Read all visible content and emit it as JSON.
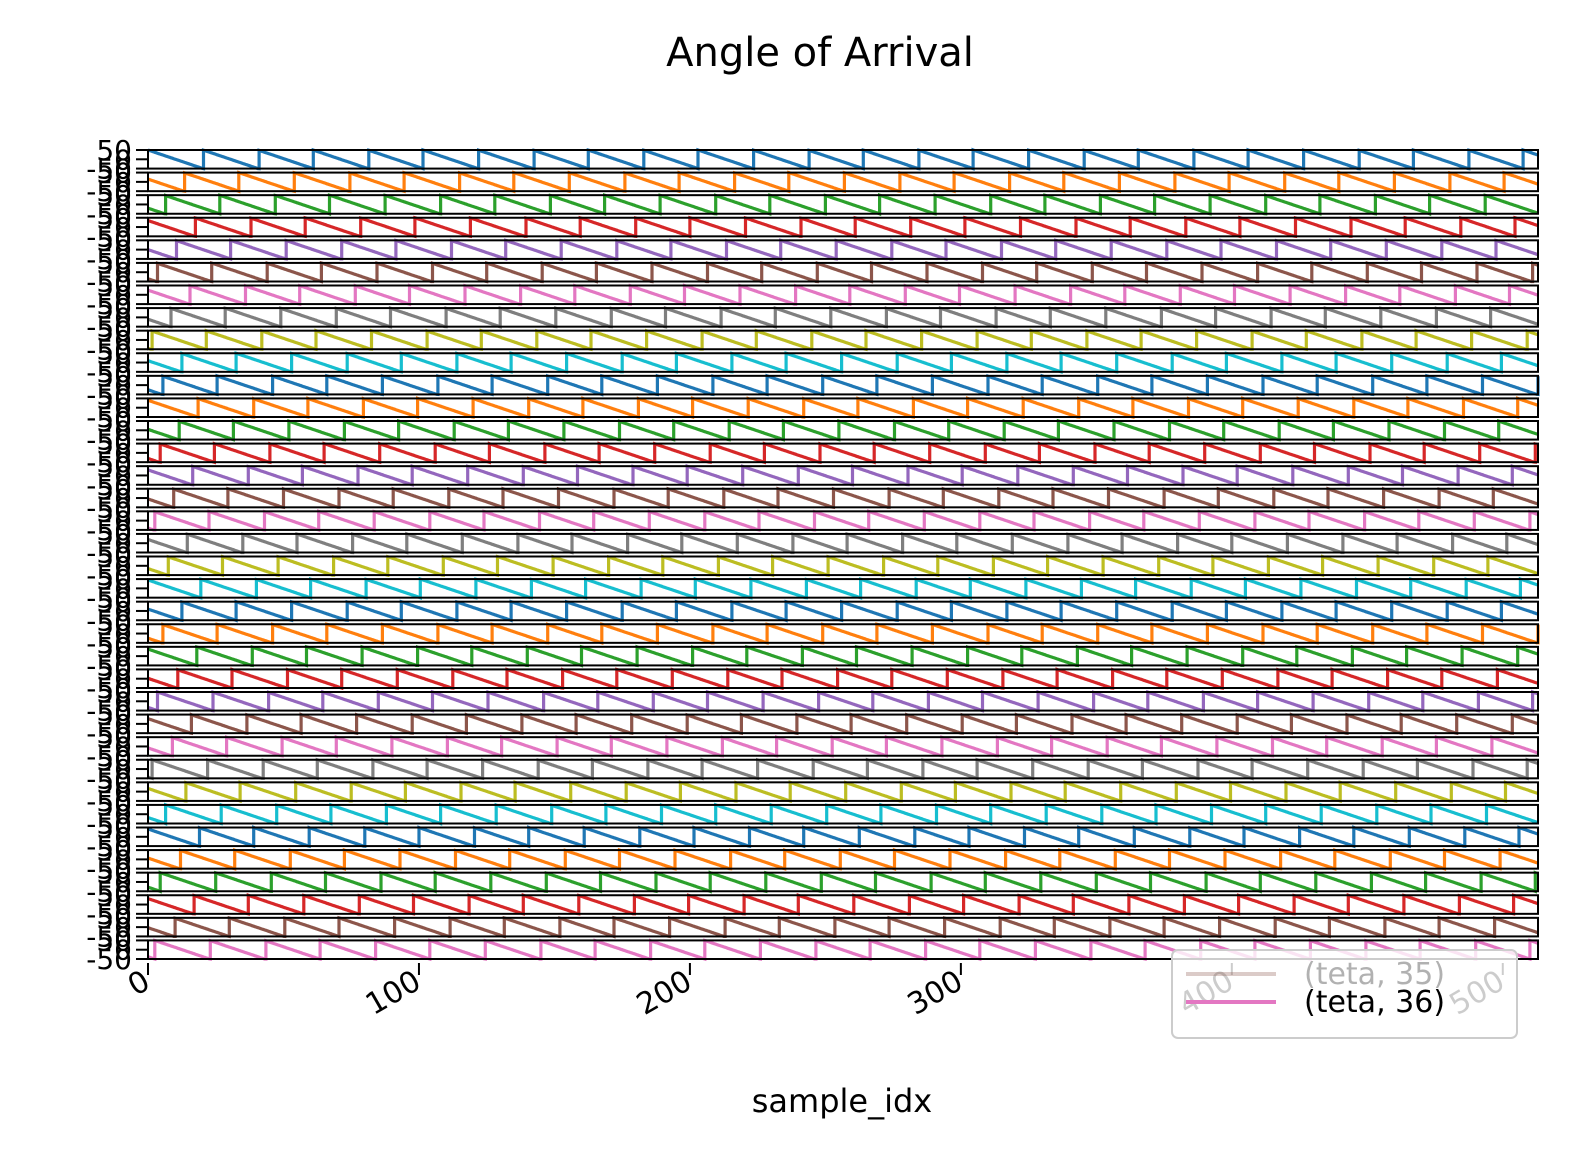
{
  "chart_data": {
    "type": "line",
    "title": "Angle of Arrival",
    "xlabel": "sample_idx",
    "ylabel": "",
    "xlim": [
      0,
      513
    ],
    "ylim": [
      -50,
      50
    ],
    "x_ticks": [
      "0",
      "100",
      "200",
      "300",
      "400",
      "500"
    ],
    "x_tick_values": [
      0,
      100,
      200,
      300,
      400,
      500
    ],
    "y_ticks": [
      "50",
      "0",
      "-50"
    ],
    "y_tick_values": [
      50,
      0,
      -50
    ],
    "grid": false,
    "legend_position": "bottom-right",
    "layout": "stacked subplots sharing x-axis",
    "sawtooth_period_samples": 20.3,
    "sawtooth_range": [
      -50,
      50
    ],
    "series": [
      {
        "name": "",
        "color": "#1f77b4",
        "phase": 0.0
      },
      {
        "name": "",
        "color": "#ff7f0e",
        "phase": 0.35
      },
      {
        "name": "",
        "color": "#2ca02c",
        "phase": 0.7
      },
      {
        "name": "",
        "color": "#d62728",
        "phase": 0.15
      },
      {
        "name": "",
        "color": "#9467bd",
        "phase": 0.5
      },
      {
        "name": "",
        "color": "#8c564b",
        "phase": 0.85
      },
      {
        "name": "",
        "color": "#e377c2",
        "phase": 0.25
      },
      {
        "name": "",
        "color": "#7f7f7f",
        "phase": 0.6
      },
      {
        "name": "",
        "color": "#bcbd22",
        "phase": 0.95
      },
      {
        "name": "",
        "color": "#17becf",
        "phase": 0.4
      },
      {
        "name": "",
        "color": "#1f77b4",
        "phase": 0.75
      },
      {
        "name": "",
        "color": "#ff7f0e",
        "phase": 0.1
      },
      {
        "name": "",
        "color": "#2ca02c",
        "phase": 0.45
      },
      {
        "name": "",
        "color": "#d62728",
        "phase": 0.8
      },
      {
        "name": "",
        "color": "#9467bd",
        "phase": 0.2
      },
      {
        "name": "",
        "color": "#8c564b",
        "phase": 0.55
      },
      {
        "name": "",
        "color": "#e377c2",
        "phase": 0.9
      },
      {
        "name": "",
        "color": "#7f7f7f",
        "phase": 0.3
      },
      {
        "name": "",
        "color": "#bcbd22",
        "phase": 0.65
      },
      {
        "name": "",
        "color": "#17becf",
        "phase": 0.05
      },
      {
        "name": "",
        "color": "#1f77b4",
        "phase": 0.4
      },
      {
        "name": "",
        "color": "#ff7f0e",
        "phase": 0.75
      },
      {
        "name": "",
        "color": "#2ca02c",
        "phase": 0.12
      },
      {
        "name": "",
        "color": "#d62728",
        "phase": 0.48
      },
      {
        "name": "",
        "color": "#9467bd",
        "phase": 0.83
      },
      {
        "name": "",
        "color": "#8c564b",
        "phase": 0.22
      },
      {
        "name": "",
        "color": "#e377c2",
        "phase": 0.58
      },
      {
        "name": "",
        "color": "#7f7f7f",
        "phase": 0.93
      },
      {
        "name": "",
        "color": "#bcbd22",
        "phase": 0.33
      },
      {
        "name": "",
        "color": "#17becf",
        "phase": 0.68
      },
      {
        "name": "",
        "color": "#1f77b4",
        "phase": 0.08
      },
      {
        "name": "",
        "color": "#ff7f0e",
        "phase": 0.43
      },
      {
        "name": "",
        "color": "#2ca02c",
        "phase": 0.78
      },
      {
        "name": "",
        "color": "#d62728",
        "phase": 0.18
      },
      {
        "name": "(teta, 35)",
        "color": "#8c564b",
        "phase": 0.53
      },
      {
        "name": "(teta, 36)",
        "color": "#e377c2",
        "phase": 0.88
      }
    ],
    "legend_entries": [
      "(teta, 35)",
      "(teta, 36)"
    ]
  }
}
